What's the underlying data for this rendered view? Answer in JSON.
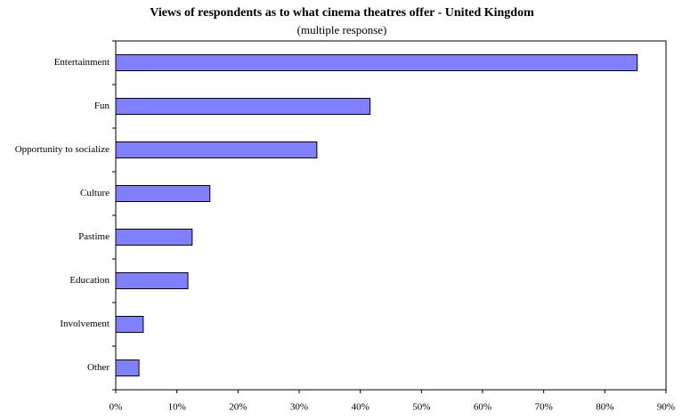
{
  "chart_data": {
    "type": "hbar",
    "title": "Views of respondents as to what cinema theatres offer - United Kingdom",
    "subtitle": "(multiple response)",
    "categories": [
      "Entertainment",
      "Fun",
      "Opportunity to socialize",
      "Culture",
      "Pastime",
      "Education",
      "Involvement",
      "Other"
    ],
    "values": [
      85.3,
      41.6,
      32.9,
      15.4,
      12.5,
      11.8,
      4.5,
      3.8
    ],
    "color": "#8080ff",
    "xlim": [
      0,
      90
    ],
    "xticks": [
      {
        "value": 0,
        "label": "0%"
      },
      {
        "value": 10,
        "label": "10%"
      },
      {
        "value": 20,
        "label": "20%"
      },
      {
        "value": 30,
        "label": "30%"
      },
      {
        "value": 40,
        "label": "40%"
      },
      {
        "value": 50,
        "label": "50%"
      },
      {
        "value": 60,
        "label": "60%"
      },
      {
        "value": 70,
        "label": "70%"
      },
      {
        "value": 80,
        "label": "80%"
      },
      {
        "value": 90,
        "label": "90%"
      }
    ],
    "grid": false
  }
}
